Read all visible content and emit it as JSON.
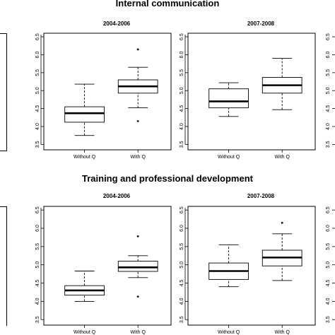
{
  "sections": [
    {
      "title": "Internal communication"
    },
    {
      "title": "Training and professional development"
    }
  ],
  "chart_data": [
    {
      "type": "box",
      "section": "Internal communication",
      "title": "2004-2006",
      "categories": [
        "Without Q",
        "With Q"
      ],
      "ylim": [
        3.35,
        6.6
      ],
      "yticks": [
        "3.5",
        "4.0",
        "4.5",
        "5.0",
        "5.5",
        "6.0",
        "6.5"
      ],
      "boxes": [
        {
          "category": "Without Q",
          "whisker_low": 3.75,
          "q1": 4.12,
          "median": 4.37,
          "q3": 4.55,
          "whisker_high": 5.18,
          "outliers": []
        },
        {
          "category": "With Q",
          "whisker_low": 4.52,
          "q1": 4.93,
          "median": 5.12,
          "q3": 5.3,
          "whisker_high": 5.65,
          "outliers": [
            4.15,
            6.15
          ]
        }
      ]
    },
    {
      "type": "box",
      "section": "Internal communication",
      "title": "2007-2008",
      "categories": [
        "Without Q",
        "With Q"
      ],
      "ylim": [
        3.35,
        6.6
      ],
      "yticks": [
        "3.5",
        "4.0",
        "4.5",
        "5.0",
        "5.5",
        "6.0",
        "6.5"
      ],
      "boxes": [
        {
          "category": "Without Q",
          "whisker_low": 4.28,
          "q1": 4.52,
          "median": 4.7,
          "q3": 5.05,
          "whisker_high": 5.22,
          "outliers": []
        },
        {
          "category": "With Q",
          "whisker_low": 4.47,
          "q1": 4.93,
          "median": 5.15,
          "q3": 5.37,
          "whisker_high": 5.9,
          "outliers": []
        }
      ]
    },
    {
      "type": "box",
      "section": "Training and professional development",
      "title": "2004-2006",
      "categories": [
        "Without Q",
        "With Q"
      ],
      "ylim": [
        3.35,
        6.6
      ],
      "yticks": [
        "3.5",
        "4.0",
        "4.5",
        "5.0",
        "5.5",
        "6.0",
        "6.5"
      ],
      "boxes": [
        {
          "category": "Without Q",
          "whisker_low": 4.0,
          "q1": 4.17,
          "median": 4.3,
          "q3": 4.43,
          "whisker_high": 4.83,
          "outliers": []
        },
        {
          "category": "With Q",
          "whisker_low": 4.65,
          "q1": 4.82,
          "median": 4.93,
          "q3": 5.1,
          "whisker_high": 5.25,
          "outliers": [
            4.13,
            5.78
          ]
        }
      ]
    },
    {
      "type": "box",
      "section": "Training and professional development",
      "title": "2007-2008",
      "categories": [
        "Without Q",
        "With Q"
      ],
      "ylim": [
        3.35,
        6.6
      ],
      "yticks": [
        "3.5",
        "4.0",
        "4.5",
        "5.0",
        "5.5",
        "6.0",
        "6.5"
      ],
      "boxes": [
        {
          "category": "Without Q",
          "whisker_low": 4.4,
          "q1": 4.6,
          "median": 4.83,
          "q3": 5.05,
          "whisker_high": 5.55,
          "outliers": []
        },
        {
          "category": "With Q",
          "whisker_low": 4.57,
          "q1": 4.97,
          "median": 5.2,
          "q3": 5.4,
          "whisker_high": 5.85,
          "outliers": [
            6.15
          ]
        }
      ]
    }
  ]
}
